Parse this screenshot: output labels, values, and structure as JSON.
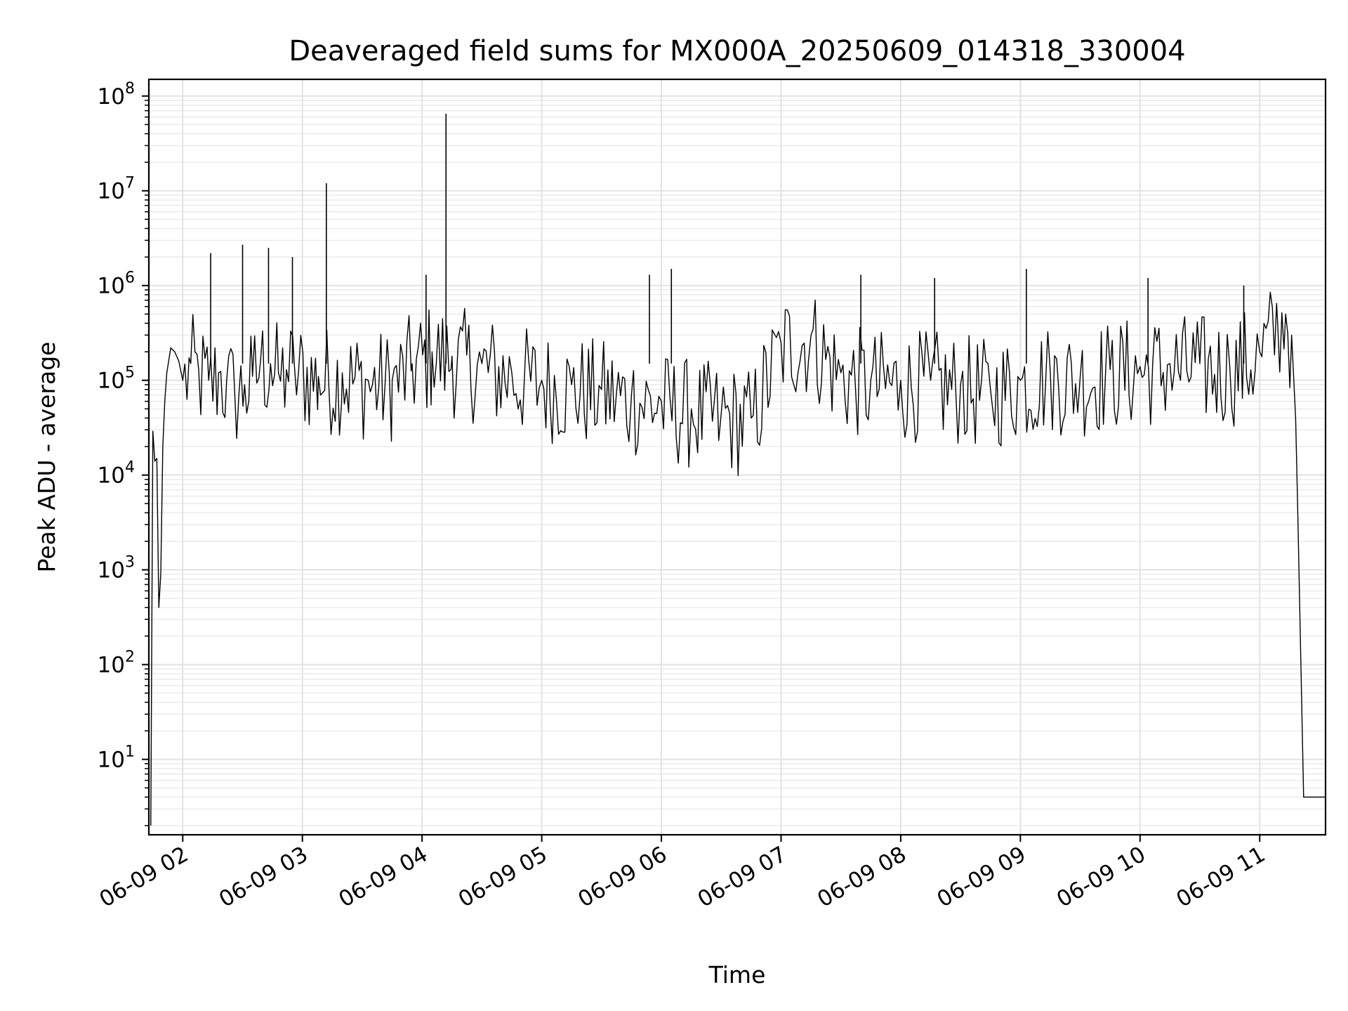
{
  "chart_data": {
    "type": "line",
    "title": "Deaveraged field sums for MX000A_20250609_014318_330004",
    "xlabel": "Time",
    "ylabel": "Peak ADU - average",
    "yscale": "log",
    "ylim": [
      1.6,
      150000000
    ],
    "xlim": [
      "2025-06-09 01:43",
      "2025-06-09 11:33"
    ],
    "grid": true,
    "x_ticks": [
      "06-09 02",
      "06-09 03",
      "06-09 04",
      "06-09 05",
      "06-09 06",
      "06-09 07",
      "06-09 08",
      "06-09 09",
      "06-09 10",
      "06-09 11"
    ],
    "y_ticks": [
      {
        "base": "10",
        "exp": "1"
      },
      {
        "base": "10",
        "exp": "2"
      },
      {
        "base": "10",
        "exp": "3"
      },
      {
        "base": "10",
        "exp": "4"
      },
      {
        "base": "10",
        "exp": "5"
      },
      {
        "base": "10",
        "exp": "6"
      },
      {
        "base": "10",
        "exp": "7"
      },
      {
        "base": "10",
        "exp": "8"
      }
    ],
    "series": [
      {
        "color": "#000000",
        "x": [
          "2025-06-09 01:44",
          "2025-06-09 01:45",
          "2025-06-09 01:46",
          "2025-06-09 01:47",
          "2025-06-09 01:48",
          "2025-06-09 01:49",
          "2025-06-09 01:50",
          "2025-06-09 01:51",
          "2025-06-09 01:52",
          "2025-06-09 01:54",
          "2025-06-09 01:56",
          "2025-06-09 01:58",
          "2025-06-09 02:00",
          "2025-06-09 02:04",
          "2025-06-09 02:08",
          "2025-06-09 02:13",
          "2025-06-09 02:18",
          "2025-06-09 02:22",
          "2025-06-09 02:26",
          "2025-06-09 02:31",
          "2025-06-09 02:35",
          "2025-06-09 02:39",
          "2025-06-09 02:44",
          "2025-06-09 02:48",
          "2025-06-09 02:52",
          "2025-06-09 02:56",
          "2025-06-09 03:08",
          "2025-06-09 03:20",
          "2025-06-09 03:33",
          "2025-06-09 03:45",
          "2025-06-09 03:55",
          "2025-06-09 04:05",
          "2025-06-09 04:15",
          "2025-06-09 04:30",
          "2025-06-09 04:45",
          "2025-06-09 05:00",
          "2025-06-09 05:15",
          "2025-06-09 05:30",
          "2025-06-09 05:45",
          "2025-06-09 06:00",
          "2025-06-09 06:15",
          "2025-06-09 06:30",
          "2025-06-09 06:45",
          "2025-06-09 07:00",
          "2025-06-09 07:15",
          "2025-06-09 07:30",
          "2025-06-09 07:45",
          "2025-06-09 08:00",
          "2025-06-09 08:15",
          "2025-06-09 08:30",
          "2025-06-09 08:45",
          "2025-06-09 09:00",
          "2025-06-09 09:15",
          "2025-06-09 09:30",
          "2025-06-09 09:45",
          "2025-06-09 10:00",
          "2025-06-09 10:15",
          "2025-06-09 10:30",
          "2025-06-09 10:45",
          "2025-06-09 11:00",
          "2025-06-09 11:09",
          "2025-06-09 11:13",
          "2025-06-09 11:16",
          "2025-06-09 11:18",
          "2025-06-09 11:19",
          "2025-06-09 11:22",
          "2025-06-09 11:26",
          "2025-06-09 11:30",
          "2025-06-09 11:33"
        ],
        "y": [
          2,
          29000,
          14000,
          15000,
          400,
          900,
          20000,
          60000,
          120000,
          220000,
          200000,
          160000,
          100000,
          150000,
          130000,
          100000,
          120000,
          100000,
          80000,
          90000,
          110000,
          160000,
          150000,
          120000,
          130000,
          140000,
          110000,
          120000,
          100000,
          100000,
          150000,
          200000,
          180000,
          150000,
          120000,
          100000,
          90000,
          80000,
          70000,
          60000,
          50000,
          45000,
          40000,
          250000,
          300000,
          120000,
          100000,
          100000,
          100000,
          90000,
          80000,
          100000,
          120000,
          110000,
          130000,
          140000,
          150000,
          150000,
          140000,
          200000,
          400000,
          500000,
          300000,
          40000,
          5000,
          4,
          4,
          4,
          4
        ]
      }
    ],
    "spikes": [
      {
        "x": "2025-06-09 02:14",
        "y": 2200000
      },
      {
        "x": "2025-06-09 02:30",
        "y": 2700000
      },
      {
        "x": "2025-06-09 02:43",
        "y": 2500000
      },
      {
        "x": "2025-06-09 02:55",
        "y": 2000000
      },
      {
        "x": "2025-06-09 03:12",
        "y": 12000000
      },
      {
        "x": "2025-06-09 04:02",
        "y": 1300000
      },
      {
        "x": "2025-06-09 04:12",
        "y": 65000000
      },
      {
        "x": "2025-06-09 05:54",
        "y": 1300000
      },
      {
        "x": "2025-06-09 06:05",
        "y": 1500000
      },
      {
        "x": "2025-06-09 07:40",
        "y": 1300000
      },
      {
        "x": "2025-06-09 08:17",
        "y": 1200000
      },
      {
        "x": "2025-06-09 09:03",
        "y": 1500000
      },
      {
        "x": "2025-06-09 10:04",
        "y": 1200000
      },
      {
        "x": "2025-06-09 10:52",
        "y": 1000000
      }
    ]
  }
}
